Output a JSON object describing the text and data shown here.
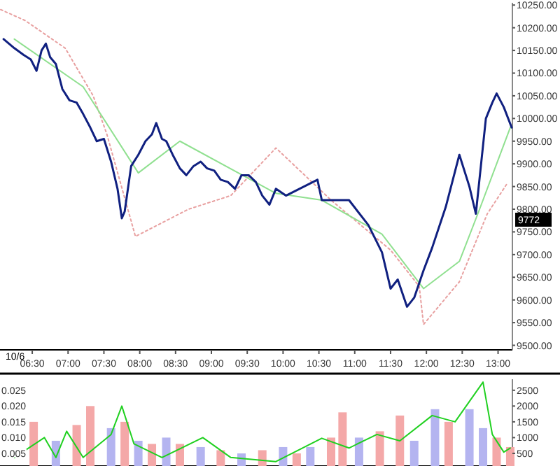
{
  "chart_data": [
    {
      "type": "line",
      "xlim": [
        6.05,
        13.2
      ],
      "ylim": [
        9490,
        10255
      ],
      "xticks": [
        {
          "value": 6.5,
          "label": "06:30"
        },
        {
          "value": 7,
          "label": "07:00"
        },
        {
          "value": 7.5,
          "label": "07:30"
        },
        {
          "value": 8,
          "label": "08:00"
        },
        {
          "value": 8.5,
          "label": "08:30"
        },
        {
          "value": 9,
          "label": "09:00"
        },
        {
          "value": 9.5,
          "label": "09:30"
        },
        {
          "value": 10,
          "label": "10:00"
        },
        {
          "value": 10.5,
          "label": "10:30"
        },
        {
          "value": 11,
          "label": "11:00"
        },
        {
          "value": 11.5,
          "label": "11:30"
        },
        {
          "value": 12,
          "label": "12:00"
        },
        {
          "value": 12.5,
          "label": "12:30"
        },
        {
          "value": 13,
          "label": "13:00"
        }
      ],
      "yticks": [
        {
          "value": 9500,
          "label": "9500.00"
        },
        {
          "value": 9550,
          "label": "9550.00"
        },
        {
          "value": 9600,
          "label": "9600.00"
        },
        {
          "value": 9650,
          "label": "9650.00"
        },
        {
          "value": 9700,
          "label": "9700.00"
        },
        {
          "value": 9750,
          "label": "9750.00"
        },
        {
          "value": 9800,
          "label": "9800.00"
        },
        {
          "value": 9850,
          "label": "9850.00"
        },
        {
          "value": 9900,
          "label": "9900.00"
        },
        {
          "value": 9950,
          "label": "9950.00"
        },
        {
          "value": 10000,
          "label": "10000.00"
        },
        {
          "value": 10050,
          "label": "10050.00"
        },
        {
          "value": 10100,
          "label": "10100.00"
        },
        {
          "value": 10150,
          "label": "10150.00"
        },
        {
          "value": 10200,
          "label": "10200.00"
        },
        {
          "value": 10250,
          "label": "10250.00"
        }
      ],
      "series": [
        {
          "color": "#e8a0a0",
          "line_style": "dotted",
          "x": [
            6.06,
            6.4,
            6.96,
            7.35,
            7.54,
            7.94,
            8.68,
            9.27,
            9.9,
            10.67,
            11.5,
            11.9,
            11.96,
            12.46,
            12.85,
            13.12
          ],
          "values": [
            10240,
            10216,
            10155,
            10050,
            9966,
            9740,
            9800,
            9830,
            9935,
            9820,
            9710,
            9630,
            9546,
            9640,
            9790,
            9855
          ]
        },
        {
          "color": "#90e090",
          "x": [
            6.25,
            7.21,
            7.98,
            8.56,
            9.9,
            10.54,
            11.38,
            11.96,
            12.46,
            12.73,
            13.17
          ],
          "values": [
            10175,
            10070,
            9880,
            9950,
            9835,
            9820,
            9745,
            9625,
            9685,
            9795,
            9980
          ]
        },
        {
          "color": "#102080",
          "x": [
            6.1,
            6.25,
            6.38,
            6.48,
            6.56,
            6.63,
            6.69,
            6.75,
            6.83,
            6.92,
            7.02,
            7.12,
            7.21,
            7.31,
            7.4,
            7.5,
            7.6,
            7.69,
            7.75,
            7.79,
            7.88,
            7.98,
            8.08,
            8.17,
            8.23,
            8.31,
            8.37,
            8.46,
            8.56,
            8.65,
            8.75,
            8.85,
            8.94,
            9.04,
            9.13,
            9.23,
            9.33,
            9.42,
            9.52,
            9.62,
            9.71,
            9.81,
            9.9,
            10.04,
            10.48,
            10.54,
            10.92,
            11.19,
            11.38,
            11.5,
            11.6,
            11.73,
            11.83,
            11.96,
            12.08,
            12.27,
            12.46,
            12.6,
            12.69,
            12.83,
            12.92,
            12.98,
            13.08,
            13.19
          ],
          "values": [
            10175,
            10155,
            10140,
            10130,
            10105,
            10150,
            10165,
            10135,
            10120,
            10065,
            10040,
            10035,
            10010,
            9980,
            9950,
            9955,
            9905,
            9845,
            9780,
            9795,
            9895,
            9920,
            9950,
            9965,
            9990,
            9955,
            9950,
            9920,
            9890,
            9875,
            9895,
            9905,
            9890,
            9885,
            9865,
            9860,
            9845,
            9875,
            9875,
            9860,
            9830,
            9810,
            9845,
            9830,
            9865,
            9820,
            9820,
            9765,
            9705,
            9625,
            9645,
            9585,
            9605,
            9665,
            9715,
            9805,
            9920,
            9850,
            9790,
            10000,
            10035,
            10055,
            10025,
            9980
          ]
        }
      ],
      "annotations": [
        "10/6",
        "9772"
      ]
    },
    {
      "type": "bar",
      "xlim": [
        6.05,
        13.2
      ],
      "ylim": [
        0.001,
        0.0285
      ],
      "y2lim": [
        100,
        2850
      ],
      "yticks": [
        {
          "value": 0.005,
          "label": "0.005"
        },
        {
          "value": 0.01,
          "label": "0.010"
        },
        {
          "value": 0.015,
          "label": "0.015"
        },
        {
          "value": 0.02,
          "label": "0.020"
        },
        {
          "value": 0.025,
          "label": "0.025"
        }
      ],
      "y2ticks": [
        500,
        1000,
        1500,
        2000,
        2500
      ],
      "series": [
        {
          "axis": "y2",
          "x": [
            6.52,
            6.83,
            7.12,
            7.31,
            7.6,
            7.79,
            7.98,
            8.17,
            8.37,
            8.56,
            8.85,
            9.13,
            9.42,
            9.71,
            10.0,
            10.19,
            10.38,
            10.67,
            10.83,
            11.06,
            11.35,
            11.63,
            11.83,
            12.12,
            12.31,
            12.6,
            12.79,
            12.98,
            13.17
          ],
          "values": [
            1500,
            900,
            1400,
            2000,
            1300,
            1500,
            900,
            800,
            1000,
            800,
            700,
            600,
            500,
            600,
            700,
            500,
            700,
            1000,
            1800,
            1000,
            1200,
            1700,
            900,
            1900,
            1500,
            1900,
            1300,
            1000,
            700
          ],
          "colors": [
            "#f4a8a8",
            "#b4b4f0",
            "#f4a8a8",
            "#f4a8a8",
            "#b4b4f0",
            "#f4a8a8",
            "#b4b4f0",
            "#f4a8a8",
            "#b4b4f0",
            "#f4a8a8",
            "#b4b4f0",
            "#f4a8a8",
            "#b4b4f0",
            "#f4a8a8",
            "#b4b4f0",
            "#f4a8a8",
            "#b4b4f0",
            "#f4a8a8",
            "#f4a8a8",
            "#b4b4f0",
            "#f4a8a8",
            "#f4a8a8",
            "#b4b4f0",
            "#b4b4f0",
            "#f4a8a8",
            "#b4b4f0",
            "#b4b4f0",
            "#f4a8a8",
            "#f4a8a8"
          ]
        },
        {
          "type": "line",
          "color": "#20d020",
          "x": [
            6.25,
            6.67,
            6.83,
            6.98,
            7.21,
            7.6,
            7.75,
            7.92,
            8.31,
            8.88,
            9.27,
            9.9,
            10.54,
            10.92,
            11.31,
            11.63,
            12.08,
            12.4,
            12.79,
            12.92,
            13.08,
            13.17
          ],
          "values": [
            0.0037,
            0.01,
            0.0037,
            0.012,
            0.0037,
            0.011,
            0.02,
            0.008,
            0.0037,
            0.01,
            0.0037,
            0.0024,
            0.0098,
            0.0067,
            0.011,
            0.009,
            0.017,
            0.015,
            0.0276,
            0.011,
            0.0054,
            0.0067
          ]
        }
      ]
    }
  ]
}
